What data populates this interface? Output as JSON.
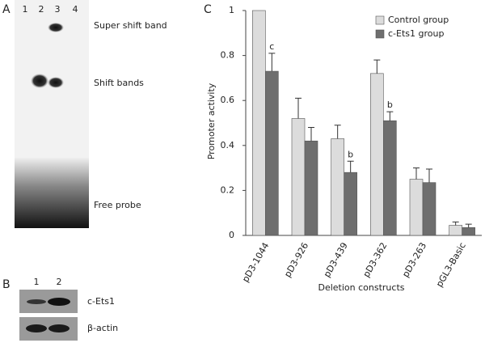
{
  "panel_a": {
    "label": "A",
    "lanes": [
      "1",
      "2",
      "3",
      "4"
    ],
    "bands": [
      "Super shift band",
      "Shift bands",
      "Free probe"
    ]
  },
  "panel_b": {
    "label": "B",
    "lanes": [
      "1",
      "2"
    ],
    "rows": [
      "c-Ets1",
      "β-actin"
    ]
  },
  "chart_data": {
    "type": "bar",
    "panel_label": "C",
    "x_label": "Deletion constructs",
    "y_label": "Promoter activity",
    "categories": [
      "pD3-1044",
      "pD3-926",
      "pD3-439",
      "pD3-362",
      "pD3-263",
      "pGL3-Basic"
    ],
    "series": [
      {
        "name": "Control group",
        "color": "#dcdcdc",
        "values": [
          1.0,
          0.52,
          0.43,
          0.72,
          0.25,
          0.045
        ],
        "errors": [
          null,
          0.09,
          0.06,
          0.06,
          0.05,
          0.015
        ],
        "significance": [
          null,
          null,
          null,
          null,
          null,
          null
        ]
      },
      {
        "name": "c-Ets1 group",
        "color": "#6e6e6e",
        "values": [
          0.73,
          0.42,
          0.28,
          0.51,
          0.235,
          0.035
        ],
        "errors": [
          0.08,
          0.06,
          0.05,
          0.04,
          0.06,
          0.015
        ],
        "significance": [
          "c",
          null,
          "b",
          "b",
          null,
          null
        ]
      }
    ],
    "ylim": [
      0,
      1
    ],
    "yticks": [
      0,
      0.2,
      0.4,
      0.6,
      0.8,
      1
    ],
    "legend": "upper right"
  }
}
